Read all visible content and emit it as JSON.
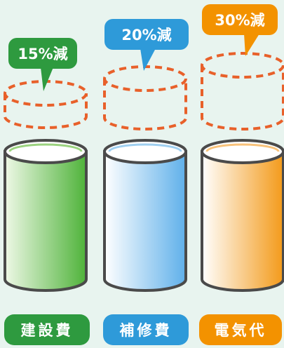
{
  "items": [
    {
      "category": "建設費",
      "reduction": "15%減",
      "color": "#2e9a3f",
      "fill_light": "#eef8e6",
      "fill_dark": "#4fb33a"
    },
    {
      "category": "補修費",
      "reduction": "20%減",
      "color": "#2e9ad9",
      "fill_light": "#f2f8fd",
      "fill_dark": "#5fb0ea"
    },
    {
      "category": "電気代",
      "reduction": "30%減",
      "color": "#f39200",
      "fill_light": "#fff4e6",
      "fill_dark": "#f39a1a"
    }
  ],
  "colors": {
    "background": "#e8f4ef",
    "dashed_outline": "#e8602a",
    "cylinder_outline": "#4a4a4a"
  }
}
